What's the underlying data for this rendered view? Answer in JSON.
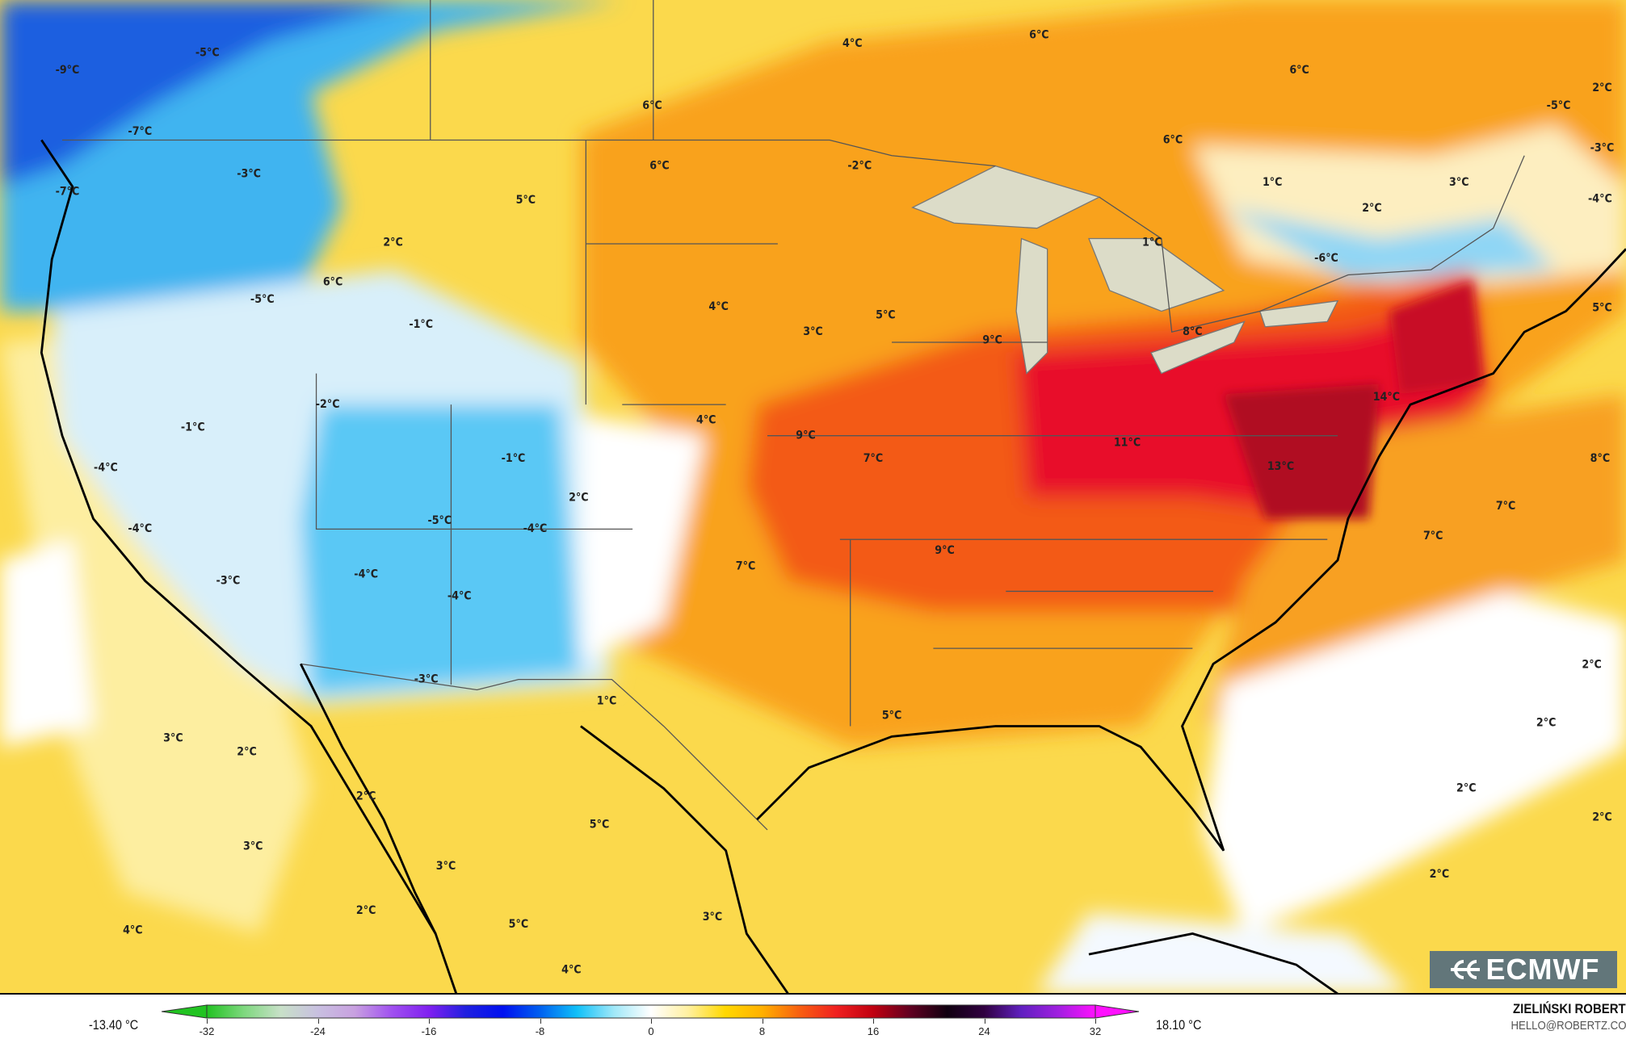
{
  "map": {
    "labels": [
      "-9°C",
      "-5°C",
      "4°C",
      "6°C",
      "6°C",
      "2°C",
      "-5°C",
      "-7°C",
      "6°C",
      "-3°C",
      "-7°C",
      "-3°C",
      "6°C",
      "-2°C",
      "6°C",
      "1°C",
      "3°C",
      "-4°C",
      "5°C",
      "2°C",
      "2°C",
      "1°C",
      "-6°C",
      "6°C",
      "-5°C",
      "4°C",
      "5°C",
      "5°C",
      "-1°C",
      "3°C",
      "9°C",
      "8°C",
      "-2°C",
      "14°C",
      "-1°C",
      "4°C",
      "9°C",
      "7°C",
      "11°C",
      "-1°C",
      "-4°C",
      "13°C",
      "8°C",
      "2°C",
      "7°C",
      "-5°C",
      "-4°C",
      "-4°C",
      "7°C",
      "9°C",
      "7°C",
      "-4°C",
      "-3°C",
      "-4°C",
      "2°C",
      "-3°C",
      "1°C",
      "5°C",
      "3°C",
      "2°C",
      "2°C",
      "2°C",
      "2°C",
      "5°C",
      "3°C",
      "2°C",
      "3°C",
      "2°C",
      "2°C",
      "3°C",
      "4°C",
      "5°C",
      "4°C"
    ]
  },
  "legend": {
    "min_value": "-13.40 °C",
    "max_value": "18.10 °C",
    "ticks": [
      "-32",
      "-24",
      "-16",
      "-8",
      "0",
      "8",
      "16",
      "24",
      "32"
    ],
    "colors": [
      "#22c322",
      "#7ed87e",
      "#c8e0c8",
      "#c8c0e0",
      "#c8a0e0",
      "#a050f0",
      "#8020f0",
      "#2020e0",
      "#0010f0",
      "#0060f0",
      "#10c0f8",
      "#a0e8f8",
      "#ffffff",
      "#fff0a0",
      "#ffd800",
      "#ffb000",
      "#f86010",
      "#f02020",
      "#c00010",
      "#600020",
      "#100010",
      "#300040",
      "#6020c0",
      "#a020e0",
      "#ff10ff"
    ]
  },
  "credits": {
    "author": "ZIELIŃSKI ROBERT",
    "email": "HELLO@ROBERTZ.CO",
    "logo_text": "ECMWF"
  }
}
